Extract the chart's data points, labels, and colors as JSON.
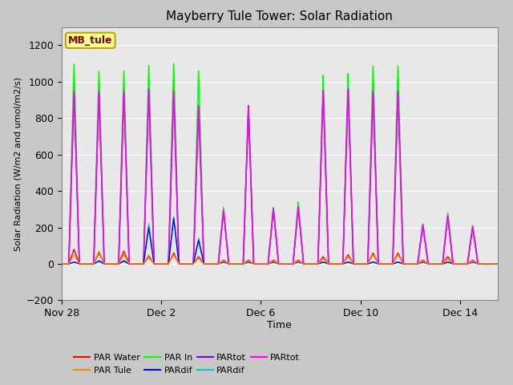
{
  "title": "Mayberry Tule Tower: Solar Radiation",
  "xlabel": "Time",
  "ylabel": "Solar Radiation (W/m2 and umol/m2/s)",
  "ylim": [
    -200,
    1300
  ],
  "yticks": [
    -200,
    0,
    200,
    400,
    600,
    800,
    1000,
    1200
  ],
  "xlim": [
    0,
    17.5
  ],
  "xtick_labels": [
    "Nov 28",
    "Dec 2",
    "Dec 6",
    "Dec 10",
    "Dec 14"
  ],
  "xtick_positions": [
    0,
    4,
    8,
    12,
    16
  ],
  "figsize": [
    6.4,
    4.8
  ],
  "dpi": 100,
  "fig_bg_color": "#c8c8c8",
  "plot_bg_color": "#e8e8e8",
  "grid_color": "#ffffff",
  "legend_box_facecolor": "#ffff99",
  "legend_box_edgecolor": "#c8a000",
  "legend_label_color": "#880000",
  "legend_label": "MB_tule",
  "title_fontsize": 11,
  "axis_fontsize": 9,
  "ylabel_fontsize": 8,
  "series": [
    {
      "name": "PAR In",
      "color": "#00ff00",
      "lw": 1.2,
      "peaks": [
        1100,
        1060,
        1060,
        1090,
        1100,
        1060,
        310,
        870,
        310,
        340,
        1040,
        1050,
        1090,
        1090,
        220,
        280,
        210
      ]
    },
    {
      "name": "PARtot_p",
      "color": "#8800cc",
      "lw": 1.0,
      "peaks": [
        950,
        940,
        940,
        950,
        940,
        860,
        290,
        860,
        300,
        310,
        950,
        960,
        945,
        945,
        210,
        260,
        200
      ]
    },
    {
      "name": "PARtot_m",
      "color": "#ff00ff",
      "lw": 1.2,
      "peaks": [
        950,
        950,
        950,
        960,
        950,
        870,
        295,
        870,
        305,
        315,
        955,
        965,
        950,
        950,
        215,
        265,
        205
      ]
    },
    {
      "name": "PARdif_c",
      "color": "#00cccc",
      "lw": 1.0,
      "peaks": [
        10,
        20,
        20,
        220,
        260,
        140,
        10,
        10,
        10,
        10,
        10,
        10,
        10,
        10,
        10,
        10,
        10
      ]
    },
    {
      "name": "PARdif_b",
      "color": "#0000ff",
      "lw": 1.0,
      "peaks": [
        10,
        15,
        15,
        200,
        250,
        130,
        10,
        10,
        10,
        10,
        10,
        10,
        10,
        10,
        10,
        10,
        10
      ]
    },
    {
      "name": "PAR Water",
      "color": "#ff0000",
      "lw": 1.0,
      "peaks": [
        80,
        60,
        70,
        40,
        60,
        40,
        20,
        20,
        20,
        20,
        40,
        50,
        60,
        60,
        20,
        40,
        20
      ]
    },
    {
      "name": "PAR Tule",
      "color": "#ff8800",
      "lw": 1.0,
      "peaks": [
        50,
        70,
        50,
        50,
        50,
        30,
        15,
        15,
        15,
        15,
        30,
        40,
        50,
        50,
        15,
        30,
        15
      ]
    }
  ],
  "legend_entries": [
    {
      "label": "PAR Water",
      "color": "#ff0000"
    },
    {
      "label": "PAR Tule",
      "color": "#ff8800"
    },
    {
      "label": "PAR In",
      "color": "#00ff00"
    },
    {
      "label": "PARdif",
      "color": "#0000ff"
    },
    {
      "label": "PARtot",
      "color": "#8800cc"
    },
    {
      "label": "PARdif",
      "color": "#00cccc"
    },
    {
      "label": "PARtot",
      "color": "#ff00ff"
    }
  ]
}
